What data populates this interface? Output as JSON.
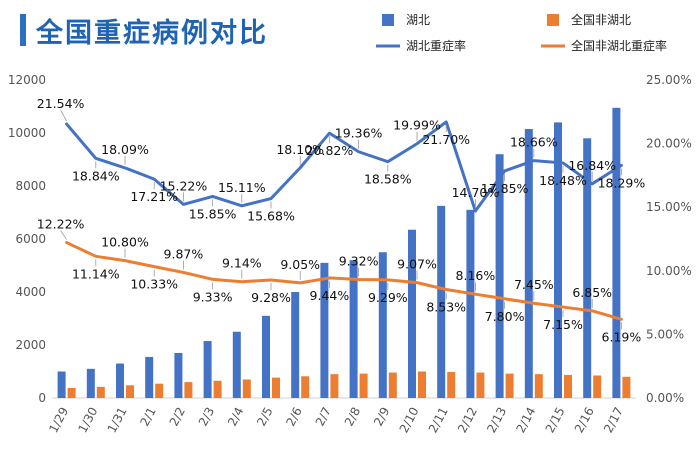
{
  "title": "全国重症病例对比",
  "chart_data": {
    "type": "bar",
    "title": "全国重症病例对比",
    "categories": [
      "1/29",
      "1/30",
      "1/31",
      "2/1",
      "2/2",
      "2/3",
      "2/4",
      "2/5",
      "2/6",
      "2/7",
      "2/8",
      "2/9",
      "2/10",
      "2/11",
      "2/12",
      "2/13",
      "2/14",
      "2/15",
      "2/16",
      "2/17"
    ],
    "series": [
      {
        "name": "湖北",
        "kind": "bar",
        "axis": "left",
        "color": "#4472c4",
        "values": [
          1000,
          1100,
          1300,
          1550,
          1700,
          2150,
          2500,
          3100,
          4000,
          5100,
          5200,
          5500,
          6350,
          7250,
          7100,
          9200,
          10150,
          10400,
          9800,
          10950
        ]
      },
      {
        "name": "全国非湖北",
        "kind": "bar",
        "axis": "left",
        "color": "#ed7d31",
        "values": [
          380,
          420,
          480,
          540,
          600,
          650,
          700,
          770,
          820,
          900,
          920,
          960,
          1000,
          980,
          960,
          920,
          900,
          870,
          850,
          800
        ]
      },
      {
        "name": "湖北重症率",
        "kind": "line",
        "axis": "right",
        "color": "#4472c4",
        "values": [
          21.54,
          18.84,
          18.09,
          17.21,
          15.22,
          15.85,
          15.11,
          15.68,
          18.1,
          20.82,
          19.36,
          18.58,
          19.99,
          21.7,
          14.7,
          17.85,
          18.66,
          18.48,
          16.84,
          18.29
        ],
        "labels": [
          "21.54%",
          "18.84%",
          "18.09%",
          "17.21%",
          "15.22%",
          "15.85%",
          "15.11%",
          "15.68%",
          "18.10%",
          "20.82%",
          "19.36%",
          "18.58%",
          "19.99%",
          "21.70%",
          "14.70%",
          "17.85%",
          "18.66%",
          "18.48%",
          "16.84%",
          "18.29%"
        ]
      },
      {
        "name": "全国非湖北重症率",
        "kind": "line",
        "axis": "right",
        "color": "#ed7d31",
        "values": [
          12.22,
          11.14,
          10.8,
          10.33,
          9.87,
          9.33,
          9.14,
          9.28,
          9.05,
          9.44,
          9.32,
          9.29,
          9.07,
          8.53,
          8.16,
          7.8,
          7.45,
          7.15,
          6.85,
          6.19
        ],
        "labels": [
          "12.22%",
          "11.14%",
          "10.80%",
          "10.33%",
          "9.87%",
          "9.33%",
          "9.14%",
          "9.28%",
          "9.05%",
          "9.44%",
          "9.32%",
          "9.29%",
          "9.07%",
          "8.53%",
          "8.16%",
          "7.80%",
          "7.45%",
          "7.15%",
          "6.85%",
          "6.19%"
        ]
      }
    ],
    "y_left": {
      "range": [
        0,
        12000
      ],
      "ticks": [
        "0",
        "2000",
        "4000",
        "6000",
        "8000",
        "10000",
        "12000"
      ]
    },
    "y_right": {
      "range": [
        0,
        25
      ],
      "ticks": [
        "0.00%",
        "5.00%",
        "10.00%",
        "15.00%",
        "20.00%",
        "25.00%"
      ]
    },
    "grid": false,
    "legend": {
      "position": "top-right",
      "entries": [
        "湖北",
        "全国非湖北",
        "湖北重症率",
        "全国非湖北重症率"
      ]
    }
  }
}
